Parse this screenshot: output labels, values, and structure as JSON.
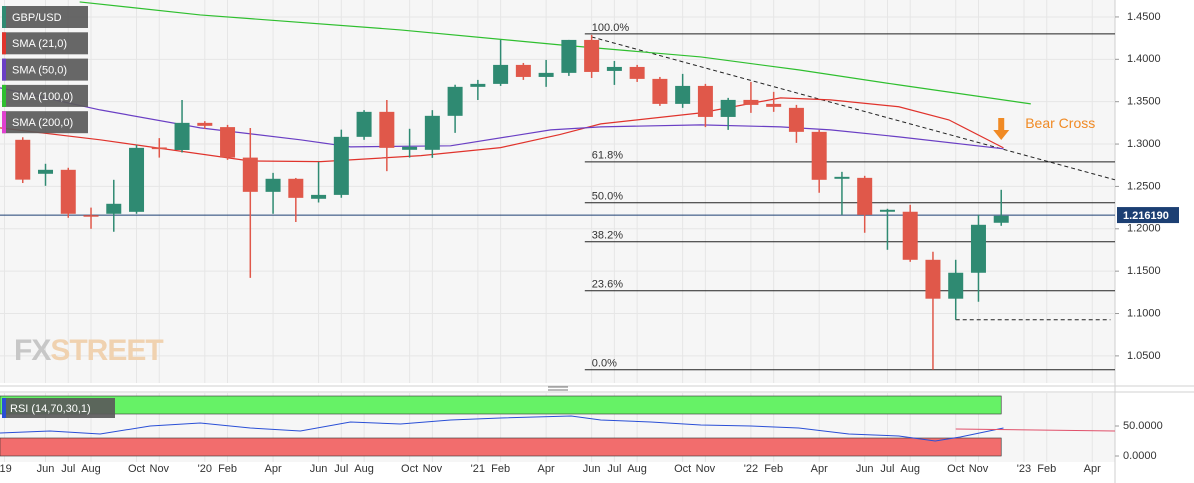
{
  "chart_data": {
    "type": "candlestick",
    "name": "GBP/USD",
    "up_color": "#2f8a72",
    "down_color": "#e0584a",
    "xlim": [
      3,
      52
    ],
    "ylim": [
      1.018,
      1.47
    ],
    "grid": true,
    "yticks": [
      {
        "value": 1.45,
        "label": "1.4500"
      },
      {
        "value": 1.4,
        "label": "1.4000"
      },
      {
        "value": 1.35,
        "label": "1.3500"
      },
      {
        "value": 1.3,
        "label": "1.3000"
      },
      {
        "value": 1.25,
        "label": "1.2500"
      },
      {
        "value": 1.2,
        "label": "1.2000"
      },
      {
        "value": 1.15,
        "label": "1.1500"
      },
      {
        "value": 1.1,
        "label": "1.1000"
      },
      {
        "value": 1.05,
        "label": "1.0500"
      }
    ],
    "xticks": [
      {
        "value": 3.2,
        "label": "'19"
      },
      {
        "value": 5,
        "label": "Jun"
      },
      {
        "value": 6,
        "label": "Jul"
      },
      {
        "value": 7,
        "label": "Aug"
      },
      {
        "value": 9,
        "label": "Oct"
      },
      {
        "value": 10,
        "label": "Nov"
      },
      {
        "value": 12,
        "label": "'20"
      },
      {
        "value": 13,
        "label": "Feb"
      },
      {
        "value": 15,
        "label": "Apr"
      },
      {
        "value": 17,
        "label": "Jun"
      },
      {
        "value": 18,
        "label": "Jul"
      },
      {
        "value": 19,
        "label": "Aug"
      },
      {
        "value": 21,
        "label": "Oct"
      },
      {
        "value": 22,
        "label": "Nov"
      },
      {
        "value": 24,
        "label": "'21"
      },
      {
        "value": 25,
        "label": "Feb"
      },
      {
        "value": 27,
        "label": "Apr"
      },
      {
        "value": 29,
        "label": "Jun"
      },
      {
        "value": 30,
        "label": "Jul"
      },
      {
        "value": 31,
        "label": "Aug"
      },
      {
        "value": 33,
        "label": "Oct"
      },
      {
        "value": 34,
        "label": "Nov"
      },
      {
        "value": 36,
        "label": "'22"
      },
      {
        "value": 37,
        "label": "Feb"
      },
      {
        "value": 39,
        "label": "Apr"
      },
      {
        "value": 41,
        "label": "Jun"
      },
      {
        "value": 42,
        "label": "Jul"
      },
      {
        "value": 43,
        "label": "Aug"
      },
      {
        "value": 45,
        "label": "Oct"
      },
      {
        "value": 46,
        "label": "Nov"
      },
      {
        "value": 48,
        "label": "'23"
      },
      {
        "value": 49,
        "label": "Feb"
      },
      {
        "value": 51,
        "label": "Apr"
      }
    ],
    "x": [
      4,
      5,
      6,
      7,
      8,
      9,
      10,
      11,
      12,
      13,
      14,
      15,
      16,
      17,
      18,
      19,
      20,
      21,
      22,
      23,
      24,
      25,
      26,
      27,
      28,
      29,
      30,
      31,
      32,
      33,
      34,
      35,
      36,
      37,
      38,
      39,
      40,
      41,
      42,
      43,
      44,
      45,
      46,
      47
    ],
    "open": [
      1.305,
      1.2649,
      1.2696,
      1.216,
      1.2177,
      1.22,
      1.296,
      1.293,
      1.325,
      1.32,
      1.284,
      1.2436,
      1.259,
      1.2354,
      1.24,
      1.3085,
      1.338,
      1.2932,
      1.2932,
      1.3333,
      1.3675,
      1.371,
      1.3934,
      1.3792,
      1.384,
      1.4229,
      1.3863,
      1.391,
      1.3769,
      1.3474,
      1.3686,
      1.332,
      1.3521,
      1.3474,
      1.3427,
      1.3144,
      1.259,
      1.2601,
      1.2201,
      1.2201,
      1.1634,
      1.1175,
      1.1481,
      1.2071
    ],
    "high": [
      1.308,
      1.2767,
      1.272,
      1.225,
      1.2578,
      1.299,
      1.307,
      1.352,
      1.327,
      1.3226,
      1.319,
      1.266,
      1.26,
      1.279,
      1.317,
      1.34,
      1.352,
      1.318,
      1.34,
      1.37,
      1.3757,
      1.4229,
      1.3957,
      1.3993,
      1.4229,
      1.4288,
      1.398,
      1.3934,
      1.3792,
      1.3828,
      1.371,
      1.3545,
      1.3733,
      1.3616,
      1.3462,
      1.3167,
      1.2672,
      1.2625,
      1.2236,
      1.2283,
      1.1729,
      1.1634,
      1.2165,
      1.246
    ],
    "low": [
      1.254,
      1.2507,
      1.213,
      1.2,
      1.1965,
      1.2177,
      1.284,
      1.29,
      1.318,
      1.2813,
      1.142,
      1.2177,
      1.208,
      1.231,
      1.2366,
      1.305,
      1.268,
      1.284,
      1.2837,
      1.3132,
      1.352,
      1.3686,
      1.3757,
      1.3675,
      1.3804,
      1.378,
      1.3698,
      1.3733,
      1.345,
      1.3427,
      1.32,
      1.3167,
      1.3368,
      1.338,
      1.3014,
      1.2425,
      1.2165,
      1.1953,
      1.1752,
      1.161,
      1.0337,
      1.0927,
      1.1139,
      1.2035
    ],
    "close": [
      1.258,
      1.2696,
      1.2177,
      1.215,
      1.2295,
      1.2955,
      1.294,
      1.325,
      1.3215,
      1.284,
      1.2436,
      1.259,
      1.2365,
      1.24,
      1.3085,
      1.338,
      1.2955,
      1.2967,
      1.3333,
      1.3675,
      1.371,
      1.3934,
      1.3792,
      1.384,
      1.4229,
      1.3851,
      1.391,
      1.3769,
      1.3474,
      1.3686,
      1.332,
      1.3521,
      1.3462,
      1.3439,
      1.3144,
      1.2578,
      1.2613,
      1.2165,
      1.2224,
      1.1634,
      1.1175,
      1.1481,
      1.2047,
      1.2153
    ],
    "last_price": {
      "value": 1.21619,
      "label": "1.216190",
      "color": "#1c3f73"
    },
    "legend_color": "#2f8a72",
    "sma": [
      {
        "name": "SMA (21,0)",
        "color": "#e0332c",
        "x": [
          3,
          7.4,
          14,
          17.1,
          21.5,
          25,
          27.6,
          29.4,
          33.8,
          37.3,
          39.5,
          42.5,
          44.7,
          47.1
        ],
        "values": [
          1.3191,
          1.305,
          1.28,
          1.2793,
          1.2863,
          1.2958,
          1.3112,
          1.3238,
          1.3368,
          1.3545,
          1.3521,
          1.344,
          1.3285,
          1.2955
        ]
      },
      {
        "name": "SMA (50,0)",
        "color": "#6a3fc4",
        "x": [
          3,
          7.4,
          11.8,
          16.2,
          18.4,
          22.8,
          27.2,
          29.4,
          33.8,
          37.3,
          39.5,
          42.5,
          47.1
        ],
        "values": [
          1.3663,
          1.3403,
          1.3191,
          1.305,
          1.2967,
          1.2979,
          1.3167,
          1.3203,
          1.3226,
          1.3203,
          1.3167,
          1.3085,
          1.2944
        ]
      },
      {
        "name": "SMA (100,0)",
        "color": "#2fbf2f",
        "x": [
          6.5,
          11.8,
          20.6,
          27.6,
          33.8,
          38.1,
          42.5,
          48.3
        ],
        "values": [
          1.4677,
          1.4524,
          1.4347,
          1.417,
          1.4028,
          1.3875,
          1.3698,
          1.3474
        ]
      },
      {
        "name": "SMA (200,0)",
        "color": "#e040d0"
      }
    ],
    "fibonacci": [
      {
        "label": "100.0%",
        "price": 1.43
      },
      {
        "label": "61.8%",
        "price": 1.279
      },
      {
        "label": "50.0%",
        "price": 1.2307
      },
      {
        "label": "38.2%",
        "price": 1.1847
      },
      {
        "label": "23.6%",
        "price": 1.1269
      },
      {
        "label": "0.0%",
        "price": 1.0337
      }
    ],
    "fib_start_x": 28.7,
    "trendline": {
      "x": [
        29,
        52
      ],
      "values": [
        1.4264,
        1.2578
      ]
    },
    "support_line": {
      "x": [
        45,
        51.8
      ],
      "values": [
        1.0927,
        1.0927
      ]
    },
    "annotation": {
      "text": "Bear Cross",
      "color": "#f08a24",
      "x": 47,
      "y": 1.3
    },
    "watermark": [
      "FX",
      "STREET"
    ],
    "rsi": {
      "name": "RSI (14,70,30,1)",
      "color": "#2a4fd6",
      "overbought": 70,
      "oversold": 30,
      "ylim": [
        -10,
        105
      ],
      "yticks": [
        {
          "value": 50,
          "label": "50.0000"
        },
        {
          "value": 0,
          "label": "0.0000"
        }
      ],
      "x": [
        3,
        5.2,
        7.4,
        9.6,
        11.8,
        14,
        16.2,
        18.4,
        20.6,
        22.8,
        25,
        28.1,
        29.4,
        31.6,
        33.8,
        36,
        38.1,
        40.3,
        42.5,
        44.1,
        45.2,
        47.1
      ],
      "values": [
        38.3,
        41.7,
        36.7,
        50,
        55,
        46.7,
        41.7,
        56.7,
        53.3,
        60,
        63.3,
        66.7,
        60,
        56.7,
        51.7,
        50,
        46.7,
        36.7,
        33.3,
        25,
        31.7,
        46.7
      ],
      "signal": {
        "color": "#e0506a",
        "x": [
          45,
          52
        ],
        "values": [
          45,
          41.7
        ]
      }
    }
  }
}
